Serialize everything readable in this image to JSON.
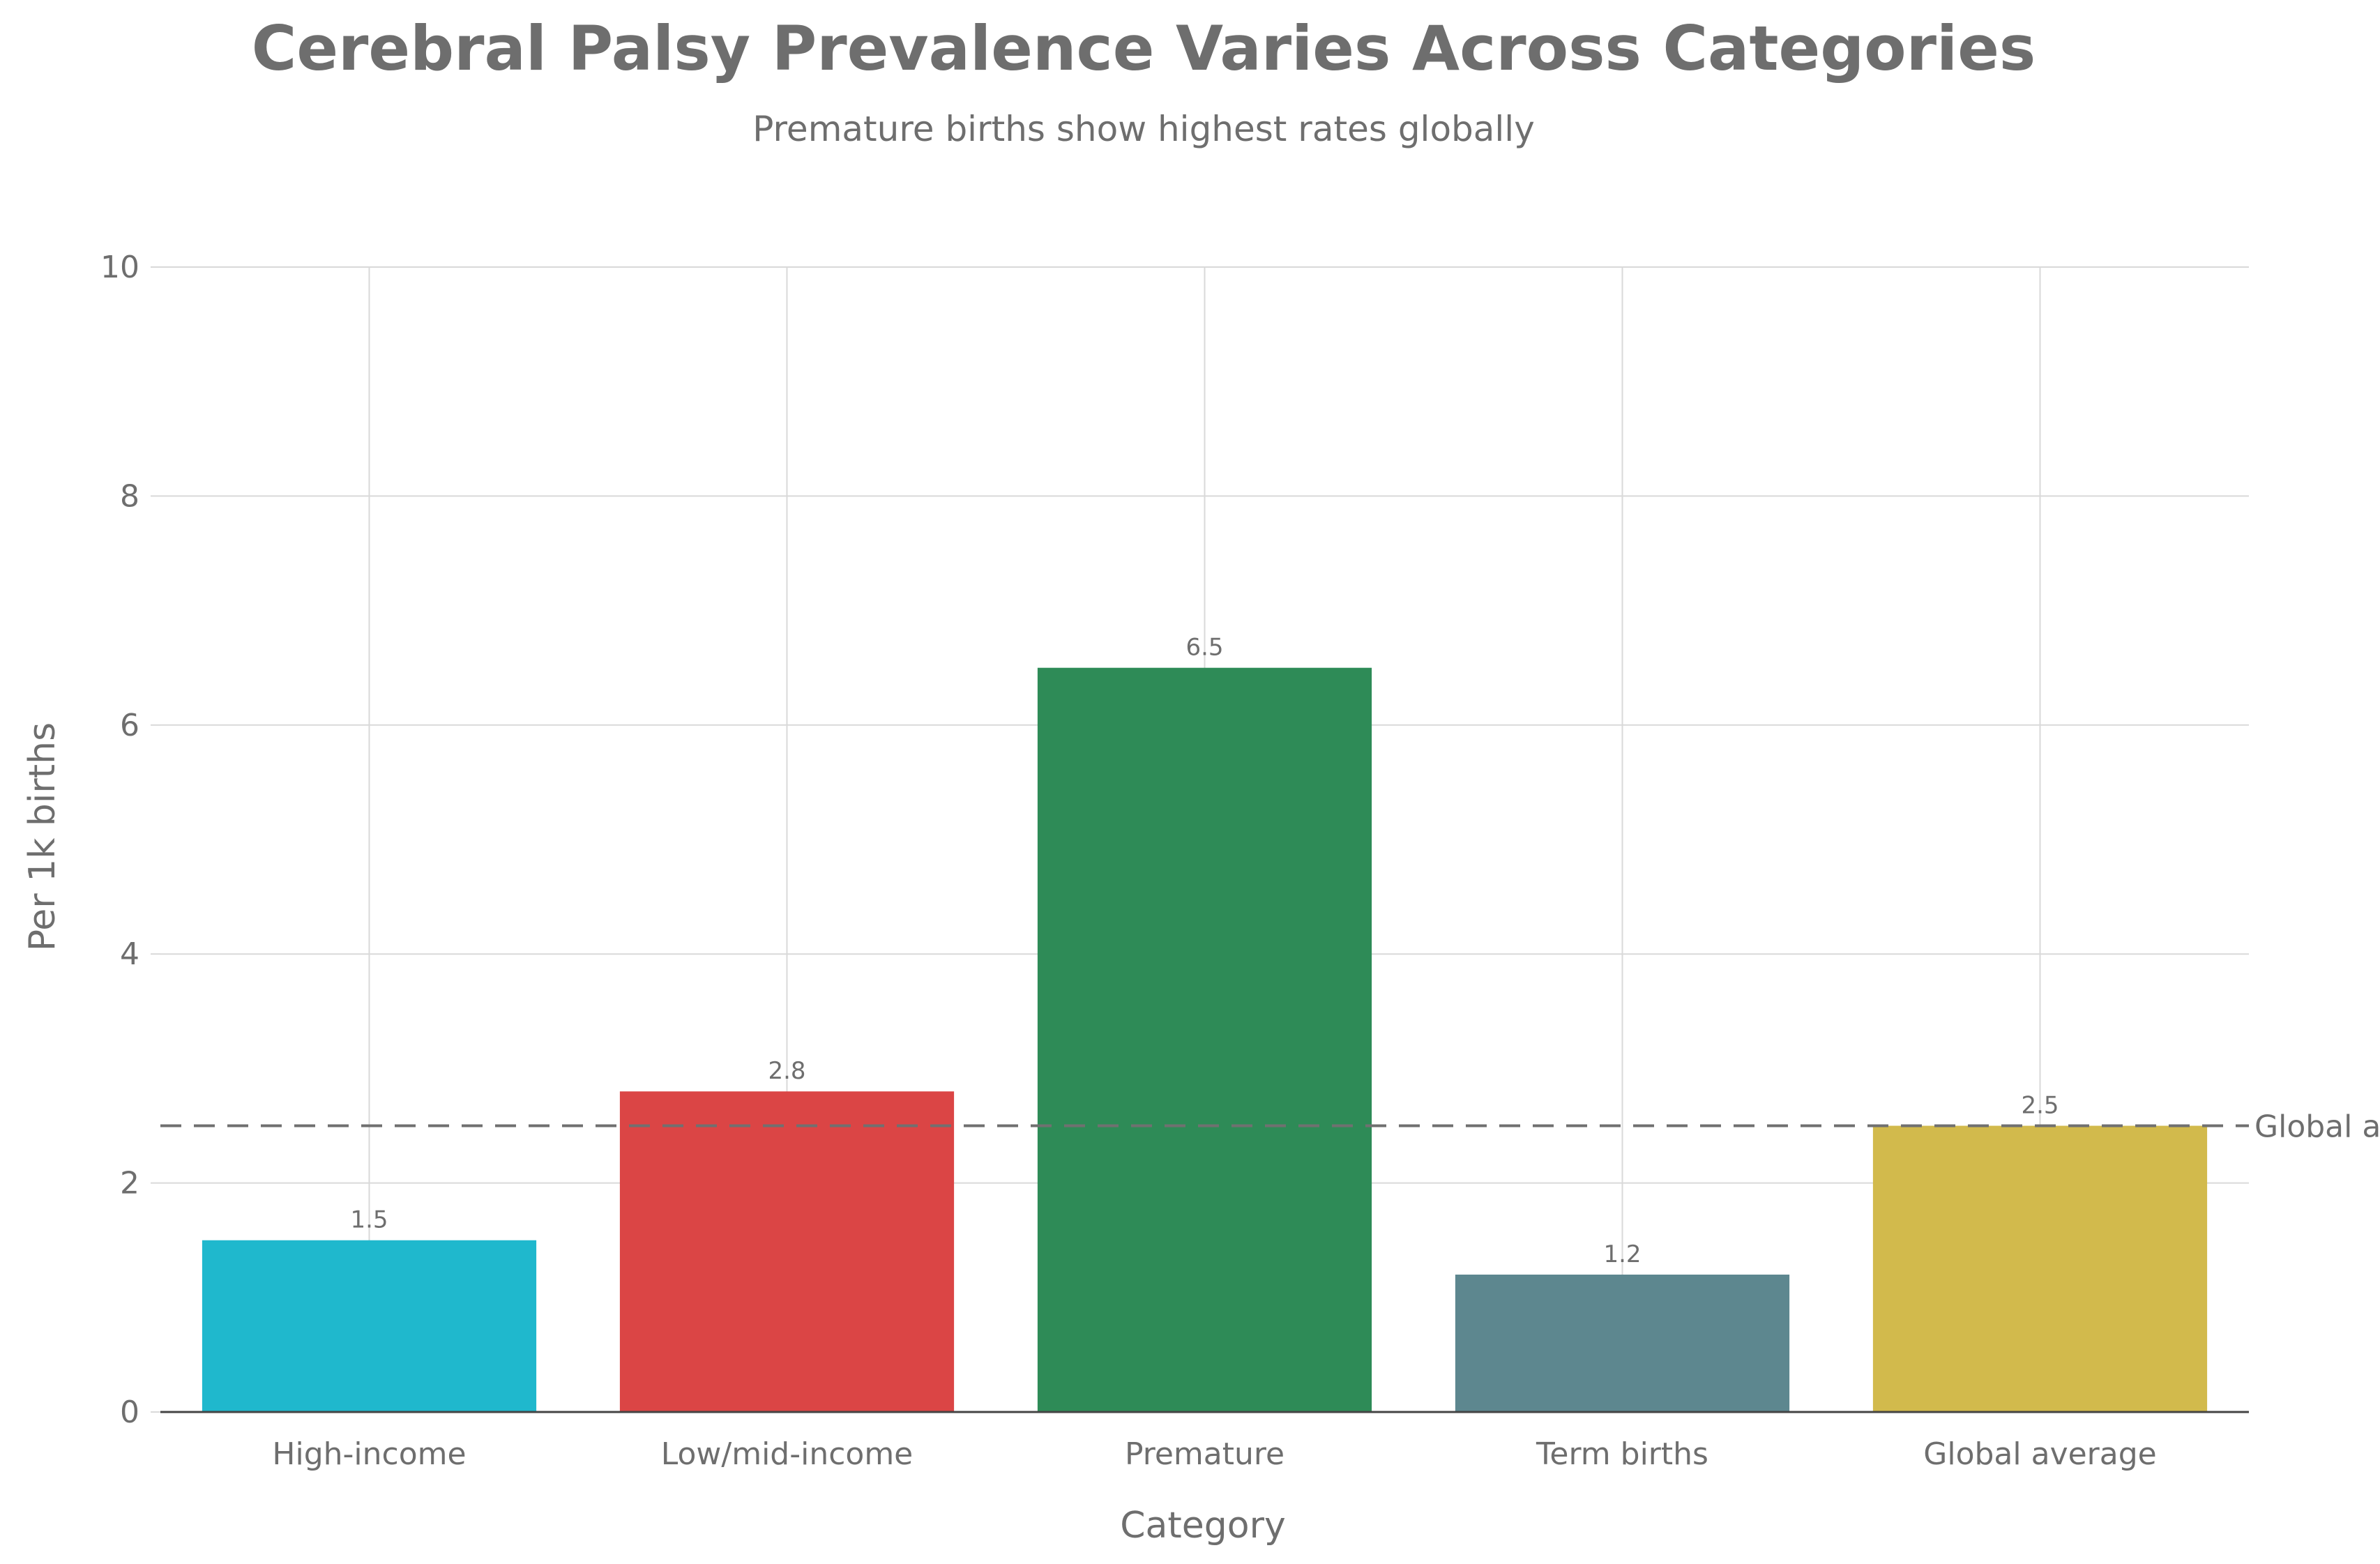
{
  "chart_data": {
    "type": "bar",
    "title": "Cerebral Palsy Prevalence Varies Across Categories",
    "subtitle": "Premature births show highest rates globally",
    "xlabel": "Category",
    "ylabel": "Per 1k births",
    "ylim": [
      0,
      10
    ],
    "yticks": [
      0,
      2,
      4,
      6,
      8,
      10
    ],
    "categories": [
      "High-income",
      "Low/mid-income",
      "Premature",
      "Term births",
      "Global average"
    ],
    "values": [
      1.5,
      2.8,
      6.5,
      1.2,
      2.5
    ],
    "data_labels": [
      "1.5",
      "2.8",
      "6.5",
      "1.2",
      "2.5"
    ],
    "colors": [
      "#1fb8cd",
      "#db4545",
      "#2e8b57",
      "#5d878f",
      "#d2ba4c"
    ],
    "reference_line": {
      "value": 2.5,
      "label": "Global a",
      "style": "dashed",
      "color": "#707070"
    },
    "grid": true,
    "gridline_color": "#d9d9d9",
    "axis_color": "#444444",
    "text_color": "#6e6e6e"
  }
}
